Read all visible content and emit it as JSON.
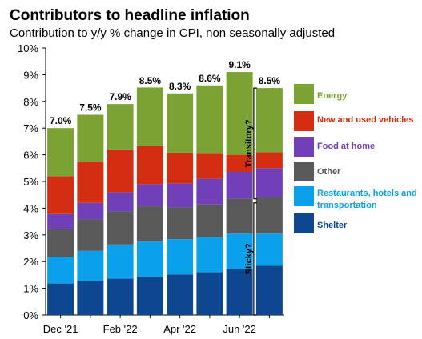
{
  "chart_data": {
    "type": "bar",
    "stacked": true,
    "title": "Contributors to headline inflation",
    "subtitle": "Contribution to y/y % change in CPI, non seasonally adjusted",
    "ylim": [
      0,
      10
    ],
    "yticks": [
      "0%",
      "1%",
      "2%",
      "3%",
      "4%",
      "5%",
      "6%",
      "7%",
      "8%",
      "9%",
      "10%"
    ],
    "categories": [
      "Dec '21",
      "Jan '22",
      "Feb '22",
      "Mar '22",
      "Apr '22",
      "May '22",
      "Jun '22",
      "Jul '22"
    ],
    "xtick_labels": [
      "Dec '21",
      "",
      "Feb '22",
      "",
      "Apr '22",
      "",
      "Jun '22",
      ""
    ],
    "totals": [
      7.0,
      7.5,
      7.9,
      8.5,
      8.3,
      8.6,
      9.1,
      8.5
    ],
    "total_labels": [
      "7.0%",
      "7.5%",
      "7.9%",
      "8.5%",
      "8.3%",
      "8.6%",
      "9.1%",
      "8.5%"
    ],
    "grid": false,
    "legend_position": "right",
    "series": [
      {
        "name": "Shelter",
        "color": "#0d4790",
        "values": [
          1.18,
          1.28,
          1.36,
          1.43,
          1.52,
          1.6,
          1.73,
          1.85
        ]
      },
      {
        "name": "Restaurants, hotels and transportation",
        "color": "#0aa0eb",
        "values": [
          0.98,
          1.12,
          1.28,
          1.32,
          1.32,
          1.32,
          1.32,
          1.2
        ]
      },
      {
        "name": "Other",
        "color": "#595959",
        "values": [
          1.05,
          1.18,
          1.24,
          1.32,
          1.19,
          1.22,
          1.31,
          1.38
        ]
      },
      {
        "name": "Food at home",
        "color": "#7140b8",
        "values": [
          0.57,
          0.62,
          0.72,
          0.83,
          0.9,
          0.96,
          1.0,
          1.07
        ]
      },
      {
        "name": "New and used vehicles",
        "color": "#d42e12",
        "values": [
          1.42,
          1.54,
          1.6,
          1.42,
          1.15,
          0.97,
          0.64,
          0.6
        ]
      },
      {
        "name": "Energy",
        "color": "#7aa333",
        "values": [
          1.8,
          1.76,
          1.7,
          2.2,
          2.22,
          2.53,
          3.1,
          2.4
        ]
      }
    ],
    "annotations": [
      {
        "text": "Transitory?",
        "from": 4.35,
        "to": 8.5
      },
      {
        "text": "Sticky?",
        "from": 0,
        "to": 4.2
      }
    ]
  }
}
